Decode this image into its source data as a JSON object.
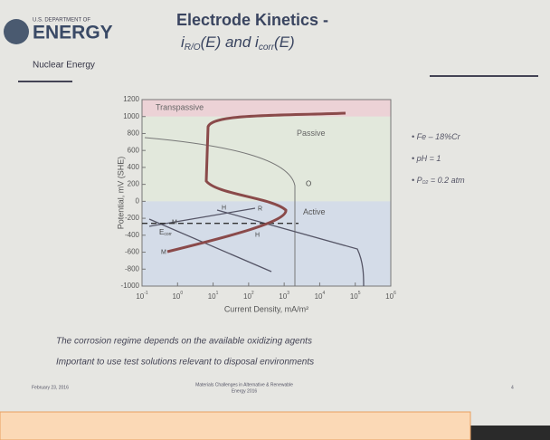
{
  "header": {
    "agency_small": "U.S. DEPARTMENT OF",
    "agency": "ENERGY",
    "office": "Nuclear Energy"
  },
  "title": {
    "line1": "Electrode Kinetics -",
    "line2": [
      "i",
      "R/O",
      "(E) and i",
      "corr",
      "(E)"
    ]
  },
  "chart": {
    "y_label": "Potential, mV (SHE)",
    "x_label": "Current  Density,  mA/m²",
    "yticks": [
      1200,
      1000,
      800,
      600,
      400,
      200,
      0,
      -200,
      -400,
      -600,
      -800,
      -1000
    ],
    "xtick_base": "10",
    "xticks": [
      -1,
      0,
      1,
      2,
      3,
      4,
      5,
      6
    ],
    "regions": [
      "Transpassive",
      "Passive",
      "Active"
    ],
    "curve_labels": {
      "o": "O",
      "h1": "H",
      "h2": "H",
      "r": "R",
      "ecorr": [
        "E",
        "corr"
      ],
      "m1": "M",
      "m2": "M"
    }
  },
  "conditions": [
    [
      "Fe – 18%Cr"
    ],
    [
      "pH = 1"
    ],
    [
      "P",
      "O2",
      " = 0.2 atm"
    ]
  ],
  "bullets": [
    "The corrosion regime depends on the available oxidizing agents",
    "Important to use test solutions relevant to disposal environments"
  ],
  "footer": {
    "date": "February 23, 2016",
    "center_line1": "Materials Challenges in Alternative & Renewable",
    "center_line2": "Energy 2016",
    "page": "4"
  }
}
